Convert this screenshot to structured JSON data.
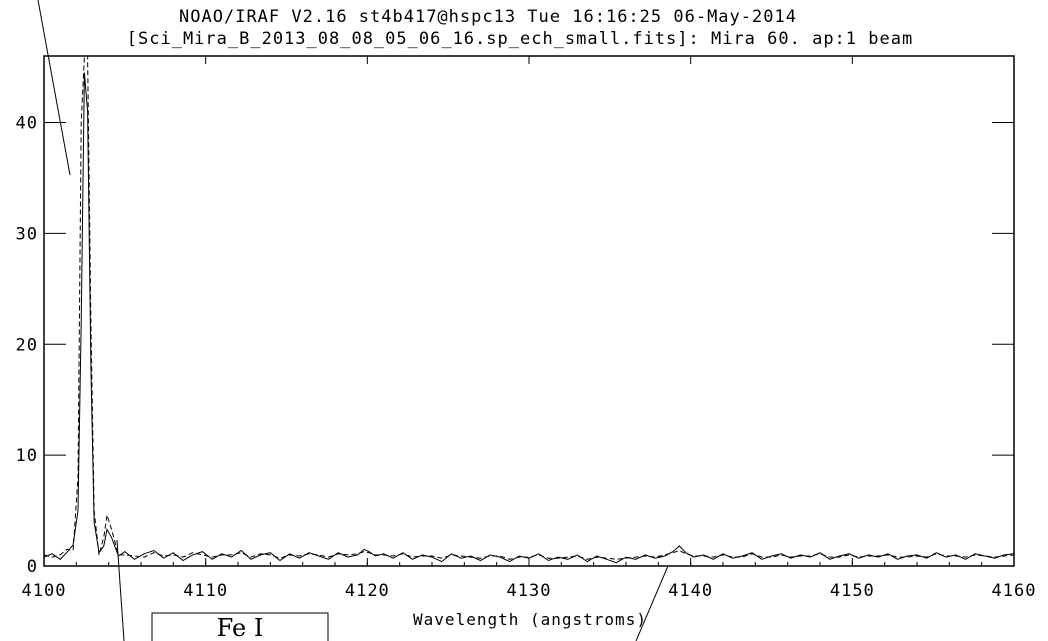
{
  "header": {
    "line1": "NOAO/IRAF V2.16 st4b417@hspc13 Tue 16:16:25 06-May-2014",
    "line2": "[Sci_Mira_B_2013_08_08_05_06_16.sp_ech_small.fits]: Mira 60. ap:1 beam"
  },
  "annotation": {
    "label": "Fe I"
  },
  "chart_data": {
    "type": "line",
    "title": "NOAO/IRAF V2.16 st4b417@hspc13 Tue 16:16:25 06-May-2014",
    "subtitle": "[Sci_Mira_B_2013_08_08_05_06_16.sp_ech_small.fits]: Mira 60. ap:1 beam",
    "xlabel": "Wavelength (angstroms)",
    "ylabel": "",
    "xlim": [
      4100,
      4160
    ],
    "ylim": [
      0,
      46
    ],
    "x_ticks": [
      4100,
      4110,
      4120,
      4130,
      4140,
      4150,
      4160
    ],
    "y_ticks": [
      0,
      10,
      20,
      30,
      40
    ],
    "grid": false,
    "series": [
      {
        "style": "solid",
        "x": [
          4100,
          4100.5,
          4101,
          4101.4,
          4101.8,
          4102.1,
          4102.3,
          4102.5,
          4102.7,
          4102.9,
          4103.1,
          4103.4,
          4103.7,
          4103.9,
          4104.2,
          4104.6,
          4105,
          4105.6,
          4106.2,
          4106.8,
          4107.4,
          4108,
          4108.6,
          4109.2,
          4109.8,
          4110.4,
          4111,
          4111.6,
          4112.2,
          4112.8,
          4113.4,
          4114,
          4114.6,
          4115.2,
          4115.8,
          4116.4,
          4117,
          4117.6,
          4118.2,
          4118.8,
          4119.4,
          4119.8,
          4120.1,
          4120.5,
          4121,
          4121.6,
          4122.2,
          4122.8,
          4123.4,
          4124,
          4124.6,
          4125.2,
          4125.8,
          4126.4,
          4127,
          4127.6,
          4128.2,
          4128.8,
          4129.4,
          4130,
          4130.6,
          4131.2,
          4131.8,
          4132.4,
          4133,
          4133.6,
          4134.2,
          4134.8,
          4135.4,
          4136,
          4136.6,
          4137.2,
          4137.8,
          4138.4,
          4138.9,
          4139.3,
          4139.7,
          4140.2,
          4140.8,
          4141.4,
          4142,
          4142.6,
          4143.2,
          4143.8,
          4144.4,
          4145,
          4145.6,
          4146.2,
          4146.8,
          4147.4,
          4148,
          4148.6,
          4149.2,
          4149.8,
          4150.4,
          4151,
          4151.6,
          4152.2,
          4152.8,
          4153.4,
          4154,
          4154.6,
          4155.2,
          4155.8,
          4156.4,
          4157,
          4157.6,
          4158.2,
          4158.8,
          4159.4,
          4160
        ],
        "y": [
          0.8,
          1.1,
          0.6,
          1.2,
          1.9,
          5,
          22,
          44.5,
          41,
          18,
          4,
          1.2,
          1.8,
          3.3,
          2.5,
          0.9,
          1.3,
          0.6,
          1.1,
          1.4,
          0.7,
          1.2,
          0.5,
          1.0,
          1.3,
          0.6,
          1.1,
          0.8,
          1.4,
          0.6,
          1.0,
          1.2,
          0.5,
          1.1,
          0.7,
          1.2,
          0.9,
          0.6,
          1.2,
          0.8,
          1.0,
          1.5,
          1.3,
          0.9,
          1.1,
          0.7,
          1.2,
          0.6,
          1.0,
          0.8,
          0.4,
          1.1,
          0.7,
          0.9,
          0.5,
          1.0,
          0.8,
          0.4,
          0.9,
          0.7,
          1.1,
          0.5,
          0.8,
          0.6,
          1.0,
          0.4,
          0.9,
          0.6,
          0.3,
          0.8,
          0.6,
          1.0,
          0.7,
          0.9,
          1.3,
          1.8,
          1.2,
          0.8,
          1.0,
          0.6,
          1.1,
          0.7,
          0.9,
          1.2,
          0.6,
          0.9,
          1.1,
          0.7,
          1.0,
          0.8,
          1.2,
          0.6,
          0.9,
          1.1,
          0.7,
          1.0,
          0.8,
          1.1,
          0.6,
          0.9,
          1.0,
          0.7,
          1.2,
          0.8,
          1.0,
          0.6,
          1.1,
          0.9,
          0.7,
          1.0,
          1.1
        ]
      },
      {
        "style": "dashed",
        "x": [
          4100,
          4100.5,
          4101,
          4101.4,
          4101.8,
          4102.1,
          4102.3,
          4102.5,
          4102.7,
          4102.9,
          4103.1,
          4103.4,
          4103.7,
          4103.9,
          4104.2,
          4104.6,
          4105,
          4105.6,
          4106.2,
          4106.8,
          4107.4,
          4108,
          4108.6,
          4109.2,
          4109.8,
          4110.4,
          4111,
          4111.6,
          4112.2,
          4112.8,
          4113.4,
          4114,
          4114.6,
          4115.2,
          4115.8,
          4116.4,
          4117,
          4117.6,
          4118.2,
          4118.8,
          4119.4,
          4119.8,
          4120.1,
          4120.5,
          4121,
          4121.6,
          4122.2,
          4122.8,
          4123.4,
          4124,
          4124.6,
          4125.2,
          4125.8,
          4126.4,
          4127,
          4127.6,
          4128.2,
          4128.8,
          4129.4,
          4130,
          4130.6,
          4131.2,
          4131.8,
          4132.4,
          4133,
          4133.6,
          4134.2,
          4134.8,
          4135.4,
          4136,
          4136.6,
          4137.2,
          4137.8,
          4138.4,
          4138.9,
          4139.3,
          4139.7,
          4140.2,
          4140.8,
          4141.4,
          4142,
          4142.6,
          4143.2,
          4143.8,
          4144.4,
          4145,
          4145.6,
          4146.2,
          4146.8,
          4147.4,
          4148,
          4148.6,
          4149.2,
          4149.8,
          4150.4,
          4151,
          4151.6,
          4152.2,
          4152.8,
          4153.4,
          4154,
          4154.6,
          4155.2,
          4155.8,
          4156.4,
          4157,
          4157.6,
          4158.2,
          4158.8,
          4159.4,
          4160
        ],
        "y": [
          1.0,
          0.8,
          1.0,
          1.5,
          1.4,
          8,
          40,
          46,
          46,
          22,
          5,
          1.0,
          2.6,
          4.6,
          3.2,
          1.0,
          1.0,
          0.9,
          0.8,
          1.2,
          0.9,
          1.0,
          0.8,
          1.2,
          1.0,
          0.8,
          1.0,
          1.0,
          1.2,
          0.8,
          1.1,
          1.0,
          0.7,
          1.0,
          0.9,
          1.1,
          1.0,
          0.8,
          1.1,
          1.0,
          1.1,
          1.3,
          1.2,
          1.0,
          1.0,
          0.9,
          1.1,
          0.8,
          0.9,
          0.9,
          0.7,
          1.0,
          0.9,
          0.8,
          0.7,
          0.9,
          0.9,
          0.6,
          0.8,
          0.8,
          1.0,
          0.7,
          0.7,
          0.8,
          0.9,
          0.6,
          0.8,
          0.7,
          0.6,
          0.7,
          0.8,
          0.9,
          0.8,
          1.0,
          1.2,
          1.4,
          1.1,
          0.9,
          0.9,
          0.8,
          1.0,
          0.8,
          0.8,
          1.1,
          0.8,
          0.8,
          1.0,
          0.8,
          0.9,
          0.9,
          1.1,
          0.8,
          0.8,
          1.0,
          0.8,
          0.9,
          0.9,
          1.0,
          0.8,
          0.8,
          0.9,
          0.8,
          1.1,
          0.9,
          0.9,
          0.8,
          1.0,
          0.9,
          0.8,
          0.9,
          1.0
        ]
      }
    ]
  }
}
